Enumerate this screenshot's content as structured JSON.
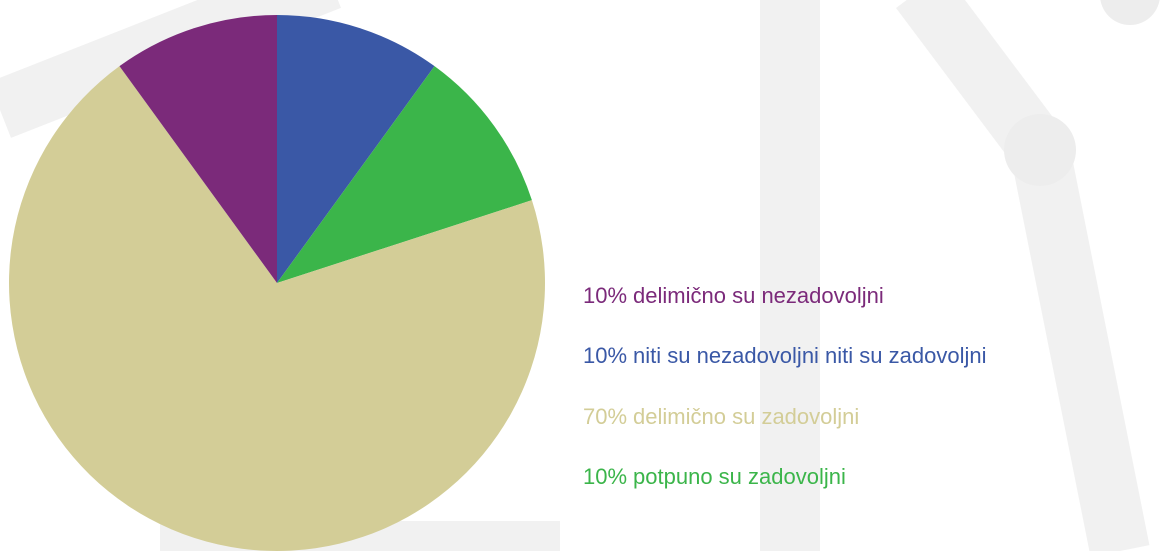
{
  "chart_data": {
    "type": "pie",
    "categories": [
      "niti su nezadovoljni niti su zadovoljni",
      "potpuno su zadovoljni",
      "delimično su zadovoljni",
      "delimično su nezadovoljni"
    ],
    "values": [
      10,
      10,
      70,
      10
    ],
    "value_labels": [
      "10%",
      "10%",
      "70%",
      "10%"
    ],
    "colors": [
      "#3a58a6",
      "#3bb54a",
      "#d3cd97",
      "#7b2a7a"
    ]
  }
}
